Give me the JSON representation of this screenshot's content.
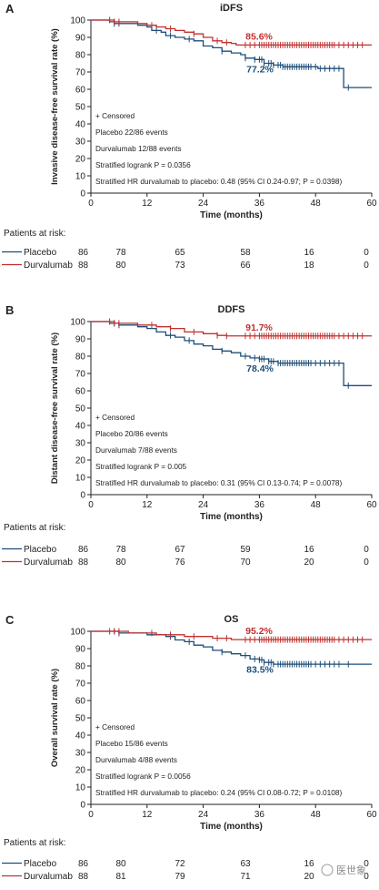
{
  "colors": {
    "placebo": "#1f4e79",
    "durvalumab": "#c0302e",
    "axis": "#222222",
    "text": "#222222"
  },
  "risk_columns": [
    "0",
    "12",
    "24",
    "36",
    "48",
    "60"
  ],
  "watermark": "医世象",
  "chart_data": [
    {
      "type": "line",
      "panel": "A",
      "title": "iDFS",
      "xlabel": "Time (months)",
      "ylabel": "Invasive disease-free survival rate (%)",
      "xlim": [
        0,
        60
      ],
      "ylim": [
        0,
        100
      ],
      "xticks": [
        "0",
        "12",
        "24",
        "36",
        "48",
        "60"
      ],
      "yticks": [
        "0",
        "10",
        "20",
        "30",
        "40",
        "50",
        "60",
        "70",
        "80",
        "90",
        "100"
      ],
      "annotations": [
        "+ Censored",
        "Placebo  22/86 events",
        "Durvalumab  12/88 events",
        "Stratified logrank  P = 0.0356",
        "Stratified HR durvalumab to placebo: 0.48 (95% CI 0.24-0.97; P = 0.0398)"
      ],
      "series": [
        {
          "name": "Placebo",
          "end_label": "77.2%",
          "points": [
            [
              0,
              100
            ],
            [
              4,
              99
            ],
            [
              5,
              98
            ],
            [
              8,
              98
            ],
            [
              10,
              97
            ],
            [
              12,
              96
            ],
            [
              13,
              94
            ],
            [
              15,
              93
            ],
            [
              16,
              91
            ],
            [
              18,
              90
            ],
            [
              20,
              89
            ],
            [
              22,
              88
            ],
            [
              24,
              85
            ],
            [
              26,
              84
            ],
            [
              28,
              82
            ],
            [
              30,
              81
            ],
            [
              32,
              80
            ],
            [
              33,
              78
            ],
            [
              35,
              77.2
            ],
            [
              37,
              75
            ],
            [
              39,
              74
            ],
            [
              41,
              73
            ],
            [
              47,
              73
            ],
            [
              48.5,
              72
            ],
            [
              52,
              72
            ],
            [
              54,
              72
            ],
            [
              54,
              61
            ],
            [
              60,
              61
            ]
          ],
          "censor_x": [
            5,
            6,
            14,
            17,
            21,
            28,
            33,
            35,
            36,
            36.5,
            37,
            38,
            38.5,
            39,
            40,
            40.5,
            41,
            41.5,
            42,
            42.5,
            43,
            43.5,
            44,
            44.5,
            45,
            45.5,
            46,
            46.5,
            47,
            48,
            49,
            50,
            51,
            52,
            53,
            55
          ]
        },
        {
          "name": "Durvalumab",
          "end_label": "85.6%",
          "points": [
            [
              0,
              100
            ],
            [
              3,
              100
            ],
            [
              5,
              99
            ],
            [
              10,
              98
            ],
            [
              12,
              97
            ],
            [
              14,
              96
            ],
            [
              16,
              95
            ],
            [
              18,
              94
            ],
            [
              20,
              93
            ],
            [
              22,
              92
            ],
            [
              24,
              90
            ],
            [
              26,
              88
            ],
            [
              28,
              87
            ],
            [
              30,
              86.5
            ],
            [
              31,
              85.6
            ],
            [
              60,
              85.6
            ]
          ],
          "censor_x": [
            4,
            5,
            6,
            13,
            17,
            22,
            27,
            29,
            33,
            34,
            35,
            36,
            36.5,
            37,
            37.5,
            38,
            38.5,
            39,
            39.5,
            40,
            40.5,
            41,
            41.5,
            42,
            42.5,
            43,
            43.5,
            44,
            44.5,
            45,
            45.5,
            46,
            46.5,
            47,
            47.5,
            48,
            48.5,
            49,
            49.5,
            50,
            50.5,
            51,
            51.5,
            52,
            53,
            54,
            55,
            56,
            57,
            58
          ]
        }
      ],
      "risk_table": {
        "title": "Patients at risk:",
        "rows": [
          {
            "name": "Placebo",
            "values": [
              "86",
              "78",
              "65",
              "58",
              "16",
              "0"
            ]
          },
          {
            "name": "Durvalumab",
            "values": [
              "88",
              "80",
              "73",
              "66",
              "18",
              "0"
            ]
          }
        ]
      }
    },
    {
      "type": "line",
      "panel": "B",
      "title": "DDFS",
      "xlabel": "Time (months)",
      "ylabel": "Distant disease-free survival rate (%)",
      "xlim": [
        0,
        60
      ],
      "ylim": [
        0,
        100
      ],
      "xticks": [
        "0",
        "12",
        "24",
        "36",
        "48",
        "60"
      ],
      "yticks": [
        "0",
        "10",
        "20",
        "30",
        "40",
        "50",
        "60",
        "70",
        "80",
        "90",
        "100"
      ],
      "annotations": [
        "+ Censored",
        "Placebo  20/86 events",
        "Durvalumab  7/88 events",
        "Stratified logrank  P = 0.005",
        "Stratified HR durvalumab to placebo: 0.31 (95% CI 0.13-0.74; P = 0.0078)"
      ],
      "series": [
        {
          "name": "Placebo",
          "end_label": "78.4%",
          "points": [
            [
              0,
              100
            ],
            [
              4,
              99
            ],
            [
              6,
              98
            ],
            [
              10,
              97
            ],
            [
              12,
              96
            ],
            [
              14,
              94
            ],
            [
              16,
              92
            ],
            [
              18,
              91
            ],
            [
              20,
              89
            ],
            [
              22,
              87
            ],
            [
              24,
              86
            ],
            [
              26,
              84
            ],
            [
              28,
              83
            ],
            [
              30,
              82
            ],
            [
              32,
              80
            ],
            [
              34,
              79
            ],
            [
              36,
              78.4
            ],
            [
              38,
              77
            ],
            [
              40,
              76
            ],
            [
              54,
              76
            ],
            [
              54,
              63
            ],
            [
              60,
              63
            ]
          ],
          "censor_x": [
            5,
            6,
            17,
            21,
            28,
            33,
            35,
            36,
            36.5,
            37,
            38,
            38.5,
            39,
            40,
            40.5,
            41,
            41.5,
            42,
            42.5,
            43,
            43.5,
            44,
            44.5,
            45,
            45.5,
            46,
            46.5,
            47,
            48,
            49,
            50,
            51,
            52,
            53,
            55
          ]
        },
        {
          "name": "Durvalumab",
          "end_label": "91.7%",
          "points": [
            [
              0,
              100
            ],
            [
              5,
              99
            ],
            [
              10,
              98
            ],
            [
              14,
              97
            ],
            [
              17,
              96
            ],
            [
              20,
              94
            ],
            [
              24,
              93
            ],
            [
              27,
              92
            ],
            [
              29,
              91.7
            ],
            [
              60,
              91.7
            ]
          ],
          "censor_x": [
            4,
            5,
            6,
            13,
            17,
            22,
            27,
            29,
            33,
            34,
            35,
            36,
            36.5,
            37,
            37.5,
            38,
            38.5,
            39,
            39.5,
            40,
            40.5,
            41,
            41.5,
            42,
            42.5,
            43,
            43.5,
            44,
            44.5,
            45,
            45.5,
            46,
            46.5,
            47,
            47.5,
            48,
            48.5,
            49,
            49.5,
            50,
            50.5,
            51,
            51.5,
            52,
            53,
            54,
            55,
            56,
            57,
            58
          ]
        }
      ],
      "risk_table": {
        "title": "Patients at risk:",
        "rows": [
          {
            "name": "Placebo",
            "values": [
              "86",
              "78",
              "67",
              "59",
              "16",
              "0"
            ]
          },
          {
            "name": "Durvalumab",
            "values": [
              "88",
              "80",
              "76",
              "70",
              "20",
              "0"
            ]
          }
        ]
      }
    },
    {
      "type": "line",
      "panel": "C",
      "title": "OS",
      "xlabel": "Time (months)",
      "ylabel": "Overall survival rate (%)",
      "xlim": [
        0,
        60
      ],
      "ylim": [
        0,
        100
      ],
      "xticks": [
        "0",
        "12",
        "24",
        "36",
        "48",
        "60"
      ],
      "yticks": [
        "0",
        "10",
        "20",
        "30",
        "40",
        "50",
        "60",
        "70",
        "80",
        "90",
        "100"
      ],
      "annotations": [
        "+ Censored",
        "Placebo  15/86 events",
        "Durvalumab  4/88 events",
        "Stratified logrank  P = 0.0056",
        "Stratified HR durvalumab to placebo: 0.24 (95% CI 0.08-0.72; P = 0.0108)"
      ],
      "series": [
        {
          "name": "Placebo",
          "end_label": "83.5%",
          "points": [
            [
              0,
              100
            ],
            [
              6,
              99
            ],
            [
              12,
              98
            ],
            [
              16,
              97
            ],
            [
              18,
              95
            ],
            [
              20,
              94
            ],
            [
              22,
              92
            ],
            [
              24,
              91
            ],
            [
              26,
              89
            ],
            [
              28,
              88
            ],
            [
              30,
              87
            ],
            [
              32,
              86
            ],
            [
              34,
              84
            ],
            [
              36,
              83.5
            ],
            [
              37,
              82
            ],
            [
              39,
              81
            ],
            [
              60,
              81
            ]
          ],
          "censor_x": [
            5,
            6,
            17,
            21,
            28,
            33,
            35,
            36,
            36.5,
            37,
            38,
            38.5,
            39,
            40,
            40.5,
            41,
            41.5,
            42,
            42.5,
            43,
            43.5,
            44,
            44.5,
            45,
            45.5,
            46,
            46.5,
            47,
            48,
            49,
            50,
            51,
            52,
            53,
            55
          ]
        },
        {
          "name": "Durvalumab",
          "end_label": "95.2%",
          "points": [
            [
              0,
              100
            ],
            [
              8,
              99
            ],
            [
              14,
              98
            ],
            [
              20,
              97
            ],
            [
              26,
              96
            ],
            [
              30,
              95.2
            ],
            [
              60,
              95.2
            ]
          ],
          "censor_x": [
            4,
            5,
            6,
            13,
            17,
            22,
            27,
            29,
            33,
            34,
            35,
            36,
            36.5,
            37,
            37.5,
            38,
            38.5,
            39,
            39.5,
            40,
            40.5,
            41,
            41.5,
            42,
            42.5,
            43,
            43.5,
            44,
            44.5,
            45,
            45.5,
            46,
            46.5,
            47,
            47.5,
            48,
            48.5,
            49,
            49.5,
            50,
            50.5,
            51,
            51.5,
            52,
            53,
            54,
            55,
            56,
            57,
            58
          ]
        }
      ],
      "risk_table": {
        "title": "Patients at risk:",
        "rows": [
          {
            "name": "Placebo",
            "values": [
              "86",
              "80",
              "72",
              "63",
              "16",
              "0"
            ]
          },
          {
            "name": "Durvalumab",
            "values": [
              "88",
              "81",
              "79",
              "71",
              "20",
              "0"
            ]
          }
        ]
      }
    }
  ]
}
